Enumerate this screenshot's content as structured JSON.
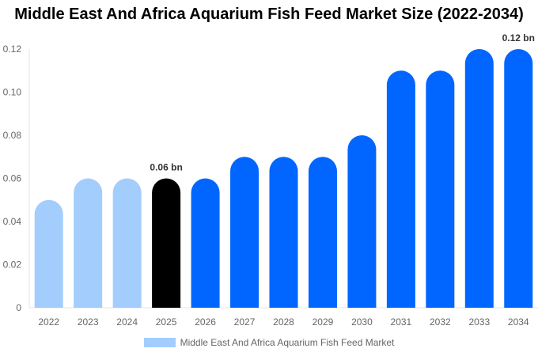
{
  "chart_data": {
    "type": "bar",
    "title": "Middle East And Africa Aquarium Fish Feed Market Size (2022-2034)",
    "categories": [
      "2022",
      "2023",
      "2024",
      "2025",
      "2026",
      "2027",
      "2028",
      "2029",
      "2030",
      "2031",
      "2032",
      "2033",
      "2034"
    ],
    "series": [
      {
        "name": "Middle East And Africa Aquarium Fish Feed Market",
        "values": [
          0.05,
          0.06,
          0.06,
          0.06,
          0.06,
          0.07,
          0.07,
          0.07,
          0.08,
          0.11,
          0.11,
          0.12,
          0.12
        ]
      }
    ],
    "yticks": [
      "0",
      "0.02",
      "0.04",
      "0.06",
      "0.08",
      "0.10",
      "0.12"
    ],
    "ylim": [
      0,
      0.12
    ],
    "grid": false,
    "legend": "bottom",
    "data_labels": [
      {
        "category": "2025",
        "text": "0.06 bn"
      },
      {
        "category": "2034",
        "text": "0.12 bn"
      }
    ],
    "colors": {
      "historical": "#a3cdfd",
      "current": "#000000",
      "forecast": "#0066ff"
    },
    "bar_color_groups": [
      "historical",
      "historical",
      "historical",
      "current",
      "forecast",
      "forecast",
      "forecast",
      "forecast",
      "forecast",
      "forecast",
      "forecast",
      "forecast",
      "forecast"
    ]
  }
}
